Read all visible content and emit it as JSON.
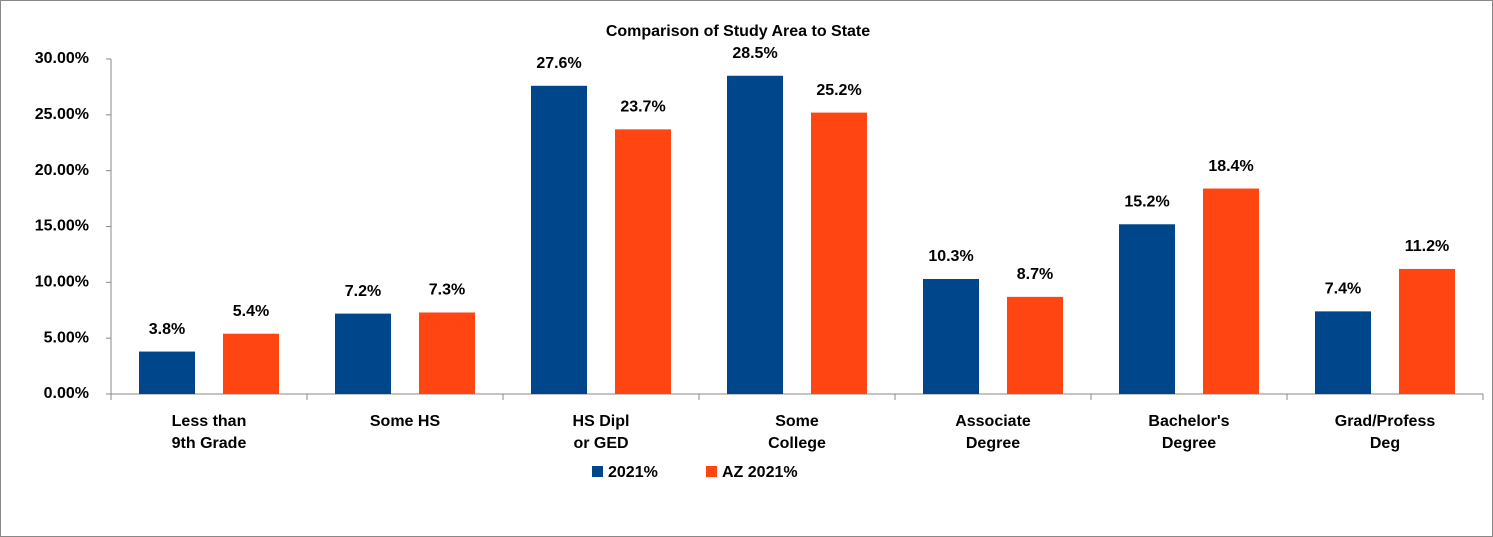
{
  "chart_data": {
    "type": "bar",
    "title": "Comparison of Study Area to State",
    "categories": [
      "Less than\n9th Grade",
      "Some HS",
      "HS Dipl\nor GED",
      "Some\nCollege",
      "Associate\nDegree",
      "Bachelor's\nDegree",
      "Grad/Profess\nDeg"
    ],
    "series": [
      {
        "name": "2021%",
        "color": "#00468b",
        "values": [
          3.8,
          7.2,
          27.6,
          28.5,
          10.3,
          15.2,
          7.4
        ],
        "value_labels": [
          "3.8%",
          "7.2%",
          "27.6%",
          "28.5%",
          "10.3%",
          "15.2%",
          "7.4%"
        ]
      },
      {
        "name": "AZ 2021%",
        "color": "#ff4612",
        "values": [
          5.4,
          7.3,
          23.7,
          25.2,
          8.7,
          18.4,
          11.2
        ],
        "value_labels": [
          "5.4%",
          "7.3%",
          "23.7%",
          "25.2%",
          "8.7%",
          "18.4%",
          "11.2%"
        ]
      }
    ],
    "ylim": [
      0,
      30
    ],
    "yticks": [
      {
        "value": 0,
        "label": "0.00%"
      },
      {
        "value": 5,
        "label": "5.00%"
      },
      {
        "value": 10,
        "label": "10.00%"
      },
      {
        "value": 15,
        "label": "15.00%"
      },
      {
        "value": 20,
        "label": "20.00%"
      },
      {
        "value": 25,
        "label": "25.00%"
      },
      {
        "value": 30,
        "label": "30.00%"
      }
    ],
    "grid": false,
    "legend": "bottom"
  }
}
